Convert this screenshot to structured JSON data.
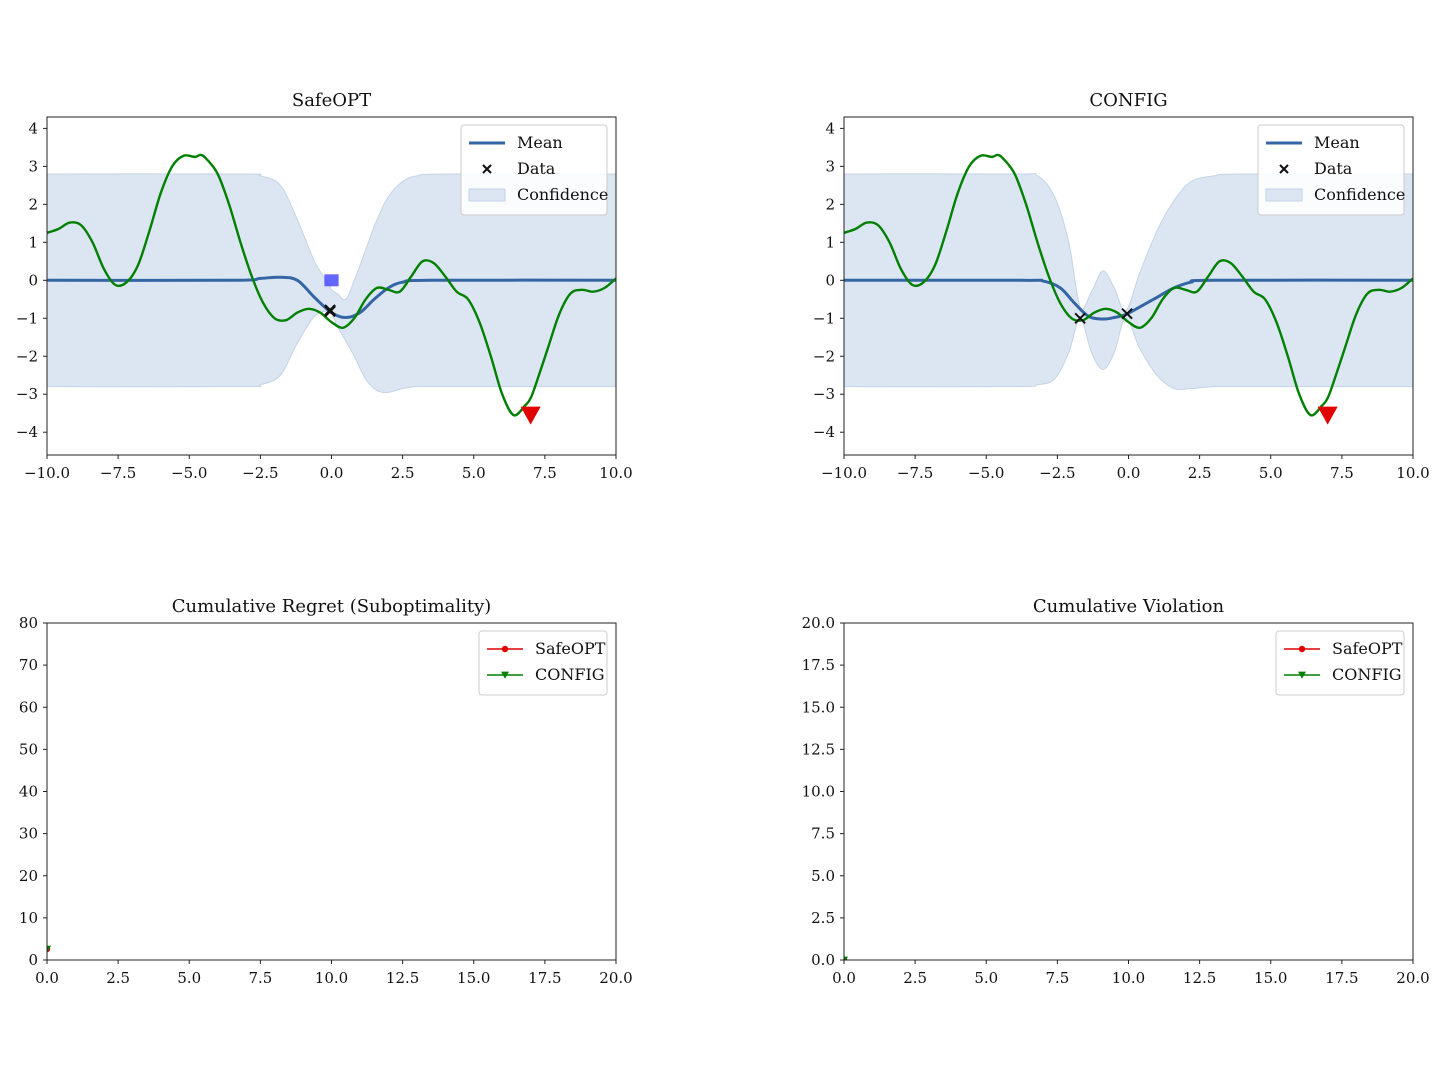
{
  "colors": {
    "mean": "#3465a4",
    "confidence": "#dce6f2",
    "objective": "#008000",
    "optimum": "#e00000",
    "safeopt_series": "#e00000",
    "config_series": "#008000",
    "safe_set": "#4a4aff"
  },
  "chart_data": [
    {
      "type": "line",
      "title": "SafeOPT",
      "xlim": [
        -10,
        10
      ],
      "ylim": [
        -4.6,
        4.3
      ],
      "xticks": [
        "−10.0",
        "−7.5",
        "−5.0",
        "−2.5",
        "0.0",
        "2.5",
        "5.0",
        "7.5",
        "10.0"
      ],
      "yticks": [
        "−4",
        "−3",
        "−2",
        "−1",
        "0",
        "1",
        "2",
        "3",
        "4"
      ],
      "legend": {
        "position": "top-right",
        "entries": [
          "Mean",
          "Data",
          "Confidence"
        ]
      },
      "objective": {
        "x": [
          -10,
          -9.6,
          -9.2,
          -8.8,
          -8.4,
          -8.0,
          -7.6,
          -7.2,
          -6.8,
          -6.4,
          -6.0,
          -5.6,
          -5.2,
          -4.8,
          -4.6,
          -4.4,
          -4.0,
          -3.6,
          -3.2,
          -2.8,
          -2.4,
          -2.0,
          -1.6,
          -1.2,
          -0.8,
          -0.4,
          0.0,
          0.4,
          0.8,
          1.2,
          1.6,
          2.0,
          2.4,
          2.8,
          3.2,
          3.6,
          4.0,
          4.4,
          4.8,
          5.2,
          5.6,
          6.0,
          6.4,
          6.8,
          7.0,
          7.2,
          7.6,
          8.0,
          8.4,
          8.8,
          9.2,
          9.6,
          10.0
        ],
        "y": [
          1.25,
          1.35,
          1.52,
          1.45,
          1.0,
          0.3,
          -0.12,
          -0.05,
          0.4,
          1.3,
          2.3,
          3.0,
          3.28,
          3.25,
          3.3,
          3.2,
          2.8,
          2.0,
          1.0,
          0.1,
          -0.6,
          -1.0,
          -1.05,
          -0.85,
          -0.75,
          -0.85,
          -1.1,
          -1.25,
          -1.0,
          -0.5,
          -0.2,
          -0.25,
          -0.3,
          0.1,
          0.5,
          0.45,
          0.1,
          -0.3,
          -0.5,
          -1.1,
          -2.0,
          -3.0,
          -3.55,
          -3.3,
          -3.1,
          -2.7,
          -1.8,
          -0.9,
          -0.35,
          -0.25,
          -0.3,
          -0.2,
          0.05
        ]
      },
      "mean": {
        "x": [
          -10,
          -3.5,
          -2.5,
          -1.8,
          -1.2,
          -0.6,
          0.0,
          0.5,
          1.0,
          1.5,
          2.0,
          2.5,
          3.5,
          10.0
        ],
        "y": [
          0,
          0,
          0.05,
          0.08,
          0.0,
          -0.45,
          -0.85,
          -0.98,
          -0.85,
          -0.5,
          -0.2,
          -0.05,
          0,
          0
        ]
      },
      "confidence": {
        "x": [
          -10,
          -3.2,
          -2.5,
          -1.8,
          -1.2,
          -0.6,
          -0.1,
          0.0,
          0.2,
          0.5,
          0.8,
          1.2,
          1.6,
          2.0,
          2.5,
          3.0,
          4.0,
          10.0
        ],
        "upper": [
          2.8,
          2.8,
          2.75,
          2.5,
          1.6,
          0.5,
          -0.1,
          -0.25,
          -0.35,
          -0.5,
          0.0,
          0.8,
          1.6,
          2.2,
          2.6,
          2.75,
          2.8,
          2.8
        ],
        "lower": [
          -2.8,
          -2.8,
          -2.75,
          -2.5,
          -1.65,
          -0.95,
          -0.8,
          -0.85,
          -1.2,
          -1.6,
          -2.0,
          -2.6,
          -2.9,
          -2.95,
          -2.85,
          -2.8,
          -2.8,
          -2.8
        ]
      },
      "data_points": {
        "x": [
          -0.05,
          -0.05,
          -0.05
        ],
        "y": [
          -0.8,
          -0.78,
          -0.82
        ]
      },
      "safe_set": {
        "x": [
          -0.25,
          0.25
        ],
        "y": 0.0
      },
      "optimum": {
        "x": 7.0,
        "y": -3.55
      }
    },
    {
      "type": "line",
      "title": "CONFIG",
      "xlim": [
        -10,
        10
      ],
      "ylim": [
        -4.6,
        4.3
      ],
      "xticks": [
        "−10.0",
        "−7.5",
        "−5.0",
        "−2.5",
        "0.0",
        "2.5",
        "5.0",
        "7.5",
        "10.0"
      ],
      "yticks": [
        "−4",
        "−3",
        "−2",
        "−1",
        "0",
        "1",
        "2",
        "3",
        "4"
      ],
      "legend": {
        "position": "top-right",
        "entries": [
          "Mean",
          "Data",
          "Confidence"
        ]
      },
      "objective": {
        "x": [
          -10,
          -9.6,
          -9.2,
          -8.8,
          -8.4,
          -8.0,
          -7.6,
          -7.2,
          -6.8,
          -6.4,
          -6.0,
          -5.6,
          -5.2,
          -4.8,
          -4.6,
          -4.4,
          -4.0,
          -3.6,
          -3.2,
          -2.8,
          -2.4,
          -2.0,
          -1.6,
          -1.2,
          -0.8,
          -0.4,
          0.0,
          0.4,
          0.8,
          1.2,
          1.6,
          2.0,
          2.4,
          2.8,
          3.2,
          3.6,
          4.0,
          4.4,
          4.8,
          5.2,
          5.6,
          6.0,
          6.4,
          6.8,
          7.0,
          7.2,
          7.6,
          8.0,
          8.4,
          8.8,
          9.2,
          9.6,
          10.0
        ],
        "y": [
          1.25,
          1.35,
          1.52,
          1.45,
          1.0,
          0.3,
          -0.12,
          -0.05,
          0.4,
          1.3,
          2.3,
          3.0,
          3.28,
          3.25,
          3.3,
          3.2,
          2.8,
          2.0,
          1.0,
          0.1,
          -0.6,
          -1.0,
          -1.05,
          -0.85,
          -0.75,
          -0.85,
          -1.1,
          -1.25,
          -1.0,
          -0.5,
          -0.2,
          -0.25,
          -0.3,
          0.1,
          0.5,
          0.45,
          0.1,
          -0.3,
          -0.5,
          -1.1,
          -2.0,
          -3.0,
          -3.55,
          -3.3,
          -3.1,
          -2.7,
          -1.8,
          -0.9,
          -0.35,
          -0.25,
          -0.3,
          -0.2,
          0.05
        ]
      },
      "mean": {
        "x": [
          -10,
          -3.8,
          -3.0,
          -2.4,
          -1.9,
          -1.4,
          -0.9,
          -0.5,
          -0.1,
          0.4,
          1.0,
          1.6,
          2.2,
          3.0,
          10.0
        ],
        "y": [
          0,
          0,
          -0.02,
          -0.2,
          -0.6,
          -0.95,
          -1.02,
          -0.98,
          -0.9,
          -0.7,
          -0.45,
          -0.2,
          -0.05,
          0,
          0
        ]
      },
      "confidence": {
        "x": [
          -10,
          -4.0,
          -3.2,
          -2.6,
          -2.1,
          -1.7,
          -1.3,
          -0.9,
          -0.5,
          -0.1,
          0.4,
          1.0,
          1.6,
          2.2,
          3.0,
          4.0,
          10.0
        ],
        "upper": [
          2.8,
          2.8,
          2.75,
          2.2,
          1.0,
          -0.7,
          -0.3,
          0.25,
          -0.2,
          -0.8,
          0.2,
          1.3,
          2.1,
          2.6,
          2.75,
          2.8,
          2.8
        ],
        "lower": [
          -2.8,
          -2.8,
          -2.75,
          -2.6,
          -1.9,
          -1.0,
          -1.9,
          -2.35,
          -1.9,
          -1.0,
          -1.8,
          -2.5,
          -2.85,
          -2.85,
          -2.8,
          -2.8,
          -2.8
        ]
      },
      "data_points": {
        "x": [
          -1.7,
          -0.05
        ],
        "y": [
          -1.0,
          -0.88
        ]
      },
      "optimum": {
        "x": 7.0,
        "y": -3.55
      }
    },
    {
      "type": "line",
      "title": "Cumulative Regret (Suboptimality)",
      "xlim": [
        0,
        20
      ],
      "ylim": [
        0,
        80
      ],
      "xticks": [
        "0.0",
        "2.5",
        "5.0",
        "7.5",
        "10.0",
        "12.5",
        "15.0",
        "17.5",
        "20.0"
      ],
      "yticks": [
        "0",
        "10",
        "20",
        "30",
        "40",
        "50",
        "60",
        "70",
        "80"
      ],
      "legend": {
        "position": "top-right",
        "entries": [
          "SafeOPT",
          "CONFIG"
        ]
      },
      "series": [
        {
          "name": "SafeOPT",
          "x": [
            0
          ],
          "y": [
            2.6
          ]
        },
        {
          "name": "CONFIG",
          "x": [
            0
          ],
          "y": [
            2.6
          ]
        }
      ]
    },
    {
      "type": "line",
      "title": "Cumulative Violation",
      "xlim": [
        0,
        20
      ],
      "ylim": [
        0,
        20
      ],
      "xticks": [
        "0.0",
        "2.5",
        "5.0",
        "7.5",
        "10.0",
        "12.5",
        "15.0",
        "17.5",
        "20.0"
      ],
      "yticks": [
        "0.0",
        "2.5",
        "5.0",
        "7.5",
        "10.0",
        "12.5",
        "15.0",
        "17.5",
        "20.0"
      ],
      "legend": {
        "position": "top-right",
        "entries": [
          "SafeOPT",
          "CONFIG"
        ]
      },
      "series": [
        {
          "name": "SafeOPT",
          "x": [
            0
          ],
          "y": [
            0
          ]
        },
        {
          "name": "CONFIG",
          "x": [
            0
          ],
          "y": [
            0
          ]
        }
      ]
    }
  ]
}
